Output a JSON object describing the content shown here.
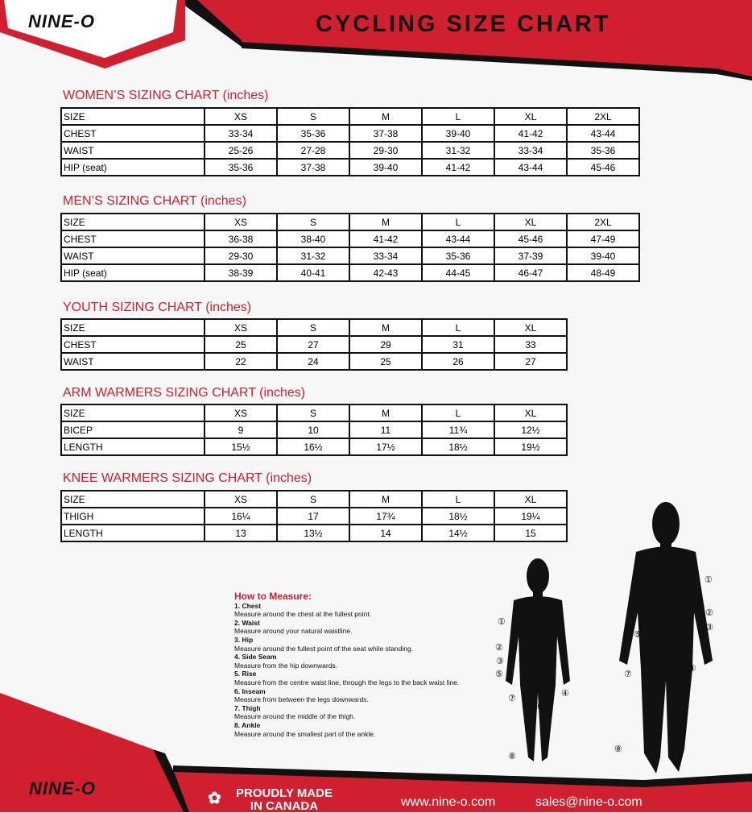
{
  "header": {
    "brand": "NINE-O",
    "title": "CYCLING SIZE CHART"
  },
  "tables": [
    {
      "title": "WOMEN’S SIZING CHART (inches)",
      "headers": [
        "SIZE",
        "XS",
        "S",
        "M",
        "L",
        "XL",
        "2XL"
      ],
      "rows": [
        [
          "CHEST",
          "33-34",
          "35-36",
          "37-38",
          "39-40",
          "41-42",
          "43-44"
        ],
        [
          "WAIST",
          "25-26",
          "27-28",
          "29-30",
          "31-32",
          "33-34",
          "35-36"
        ],
        [
          "HIP (seat)",
          "35-36",
          "37-38",
          "39-40",
          "41-42",
          "43-44",
          "45-46"
        ]
      ]
    },
    {
      "title": "MEN’S SIZING CHART (inches)",
      "headers": [
        "SIZE",
        "XS",
        "S",
        "M",
        "L",
        "XL",
        "2XL"
      ],
      "rows": [
        [
          "CHEST",
          "36-38",
          "38-40",
          "41-42",
          "43-44",
          "45-46",
          "47-49"
        ],
        [
          "WAIST",
          "29-30",
          "31-32",
          "33-34",
          "35-36",
          "37-39",
          "39-40"
        ],
        [
          "HIP (seat)",
          "38-39",
          "40-41",
          "42-43",
          "44-45",
          "46-47",
          "48-49"
        ]
      ]
    },
    {
      "title": "YOUTH SIZING CHART (inches)",
      "headers": [
        "SIZE",
        "XS",
        "S",
        "M",
        "L",
        "XL"
      ],
      "rows": [
        [
          "CHEST",
          "25",
          "27",
          "29",
          "31",
          "33"
        ],
        [
          "WAIST",
          "22",
          "24",
          "25",
          "26",
          "27"
        ]
      ]
    },
    {
      "title": "ARM WARMERS SIZING CHART (inches)",
      "headers": [
        "SIZE",
        "XS",
        "S",
        "M",
        "L",
        "XL"
      ],
      "rows": [
        [
          "BICEP",
          "9",
          "10",
          "11",
          "11¾",
          "12½"
        ],
        [
          "LENGTH",
          "15½",
          "16½",
          "17½",
          "18½",
          "19½"
        ]
      ]
    },
    {
      "title": "KNEE WARMERS SIZING CHART (inches)",
      "headers": [
        "SIZE",
        "XS",
        "S",
        "M",
        "L",
        "XL"
      ],
      "rows": [
        [
          "THIGH",
          "16¼",
          "17",
          "17¾",
          "18½",
          "19¼"
        ],
        [
          "LENGTH",
          "13",
          "13½",
          "14",
          "14½",
          "15"
        ]
      ]
    }
  ],
  "how_to_measure": {
    "title": "How to Measure:",
    "items": [
      {
        "name": "1. Chest",
        "text": "Measure around the chest at the fullest point."
      },
      {
        "name": "2. Waist",
        "text": "Measure around your natural waistline."
      },
      {
        "name": "3. Hip",
        "text": "Measure around the fullest point of the seat while standing."
      },
      {
        "name": "4. Side Seam",
        "text": "Measure from the hip downwards."
      },
      {
        "name": "5. Rise",
        "text": "Measure from the centre waist line, through the legs to the back waist line."
      },
      {
        "name": "6. Inseam",
        "text": "Measure from between the legs downwards."
      },
      {
        "name": "7. Thigh",
        "text": "Measure around the middle of the thigh."
      },
      {
        "name": "8. Ankle",
        "text": "Measure around the smallest part of the ankle."
      }
    ]
  },
  "figure_markers": [
    "①",
    "②",
    "③",
    "④",
    "⑤",
    "⑥",
    "⑦",
    "⑧"
  ],
  "footer": {
    "brand": "NINE-O",
    "made_line1": "PROUDLY MADE",
    "made_line2": "IN CANADA",
    "website": "www.nine-o.com",
    "email": "sales@nine-o.com"
  },
  "colors": {
    "red": "#d0202f",
    "black": "#111111"
  }
}
